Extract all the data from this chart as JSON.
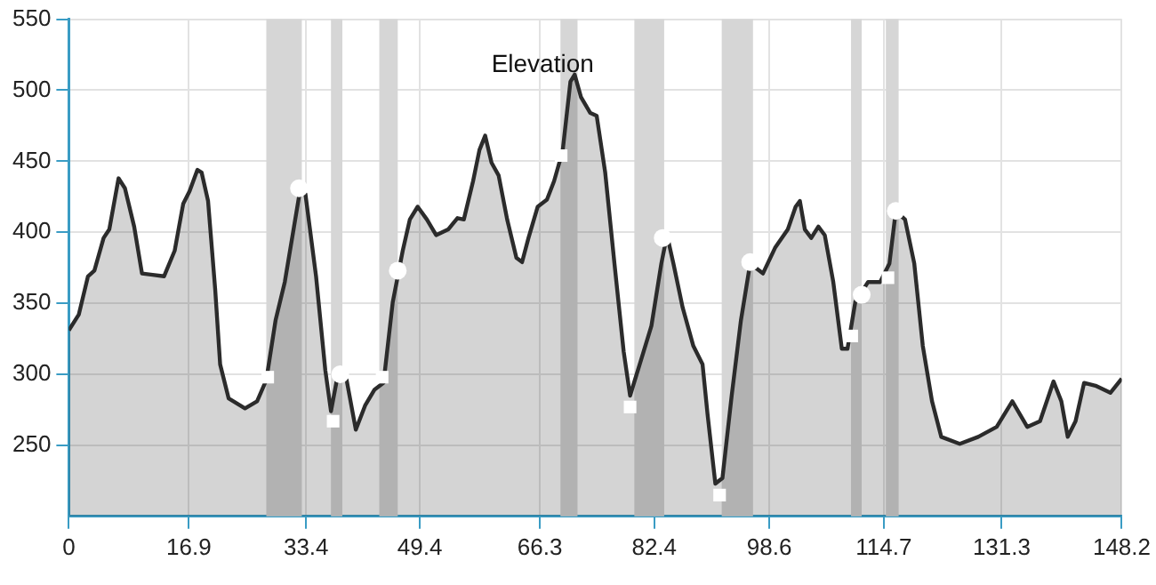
{
  "chart_data": {
    "type": "area",
    "title": "Elevation",
    "xlim": [
      0,
      148.2
    ],
    "ylim": [
      200,
      550
    ],
    "xticks": [
      0,
      16.9,
      33.4,
      49.4,
      66.3,
      82.4,
      98.6,
      114.7,
      131.3,
      148.2
    ],
    "yticks": [
      250,
      300,
      350,
      400,
      450,
      500,
      550
    ],
    "grid": true,
    "legend": false,
    "line_style": "solid",
    "bands": [
      {
        "axis": "x",
        "from": 27.8,
        "to": 32.8,
        "color": "#d6d6d6"
      },
      {
        "axis": "x",
        "from": 36.9,
        "to": 38.5,
        "color": "#d6d6d6"
      },
      {
        "axis": "x",
        "from": 43.7,
        "to": 46.3,
        "color": "#d6d6d6"
      },
      {
        "axis": "x",
        "from": 69.2,
        "to": 71.6,
        "color": "#d6d6d6"
      },
      {
        "axis": "x",
        "from": 79.6,
        "to": 83.8,
        "color": "#d6d6d6"
      },
      {
        "axis": "x",
        "from": 91.9,
        "to": 96.3,
        "color": "#d6d6d6"
      },
      {
        "axis": "x",
        "from": 110.1,
        "to": 111.6,
        "color": "#d6d6d6"
      },
      {
        "axis": "x",
        "from": 115,
        "to": 116.8,
        "color": "#d6d6d6"
      }
    ],
    "series": [
      {
        "type": "area",
        "color": "#2b2b2b",
        "marker": "none",
        "x": [
          0,
          1.4,
          2.7,
          3.6,
          4.9,
          5.7,
          7,
          7.9,
          9.2,
          10.3,
          11.8,
          13.4,
          14.9,
          16.1,
          17,
          18.1,
          18.7,
          19.6,
          20.6,
          21.3,
          22.5,
          24.8,
          26.5,
          27.8,
          29.1,
          30.4,
          31.7,
          32.6,
          33.3,
          34.8,
          36.1,
          36.9,
          37.8,
          39.1,
          40.4,
          41.7,
          43,
          44.3,
          45.6,
          47,
          48,
          49.1,
          50.4,
          51.7,
          53.4,
          54.7,
          55.6,
          56.9,
          57.8,
          58.6,
          59.5,
          60.5,
          61.7,
          63,
          63.8,
          64.7,
          66,
          67.3,
          68.3,
          69.5,
          70.6,
          71.2,
          72.1,
          73.4,
          74.3,
          75.5,
          76.8,
          78.1,
          79,
          80.6,
          82,
          83.4,
          84.2,
          85.1,
          86.4,
          87.9,
          89.2,
          89.9,
          91,
          92,
          93.3,
          94.6,
          95.9,
          97.7,
          99.4,
          101.2,
          102.3,
          102.9,
          103.6,
          104.5,
          105.5,
          106.4,
          107.6,
          108.8,
          109.6,
          110.7,
          112.5,
          114.2,
          115.5,
          116.4,
          117.7,
          119,
          120.2,
          121.5,
          122.8,
          125.4,
          128,
          130.6,
          132.8,
          134.9,
          136.7,
          138.6,
          139.7,
          140.6,
          141.7,
          142.9,
          144.5,
          146.6,
          148.2
        ],
        "values": [
          331,
          342,
          369,
          373,
          396,
          402,
          438,
          431,
          404,
          371,
          370,
          369,
          387,
          420,
          429,
          444,
          442,
          422,
          360,
          307,
          283,
          276,
          281,
          296,
          338,
          365,
          404,
          431,
          427,
          369,
          303,
          274,
          298,
          296,
          261,
          278,
          289,
          294,
          351,
          387,
          409,
          418,
          409,
          398,
          402,
          410,
          409,
          436,
          458,
          468,
          449,
          440,
          409,
          382,
          379,
          396,
          418,
          423,
          436,
          457,
          506,
          511,
          495,
          484,
          482,
          442,
          378,
          316,
          285,
          311,
          334,
          378,
          398,
          378,
          347,
          320,
          307,
          272,
          223,
          227,
          285,
          338,
          378,
          371,
          389,
          402,
          418,
          422,
          402,
          396,
          404,
          398,
          365,
          318,
          318,
          351,
          365,
          365,
          378,
          415,
          409,
          378,
          320,
          281,
          256,
          251,
          256,
          263,
          281,
          263,
          267,
          295,
          281,
          256,
          267,
          294,
          292,
          287,
          297
        ]
      },
      {
        "type": "scatter",
        "color": "#ffffff",
        "marker": "square",
        "x": [
          28,
          37.2,
          44.1,
          69.3,
          79,
          91.6,
          110.2,
          115.3
        ],
        "values": [
          298,
          267,
          298,
          454,
          277,
          215,
          327,
          368
        ]
      },
      {
        "type": "scatter",
        "color": "#ffffff",
        "marker": "circle",
        "x": [
          32.4,
          38.2,
          46.3,
          83.6,
          95.9,
          111.6,
          116.4
        ],
        "values": [
          431,
          300,
          373,
          396,
          379,
          356,
          415
        ]
      }
    ]
  }
}
